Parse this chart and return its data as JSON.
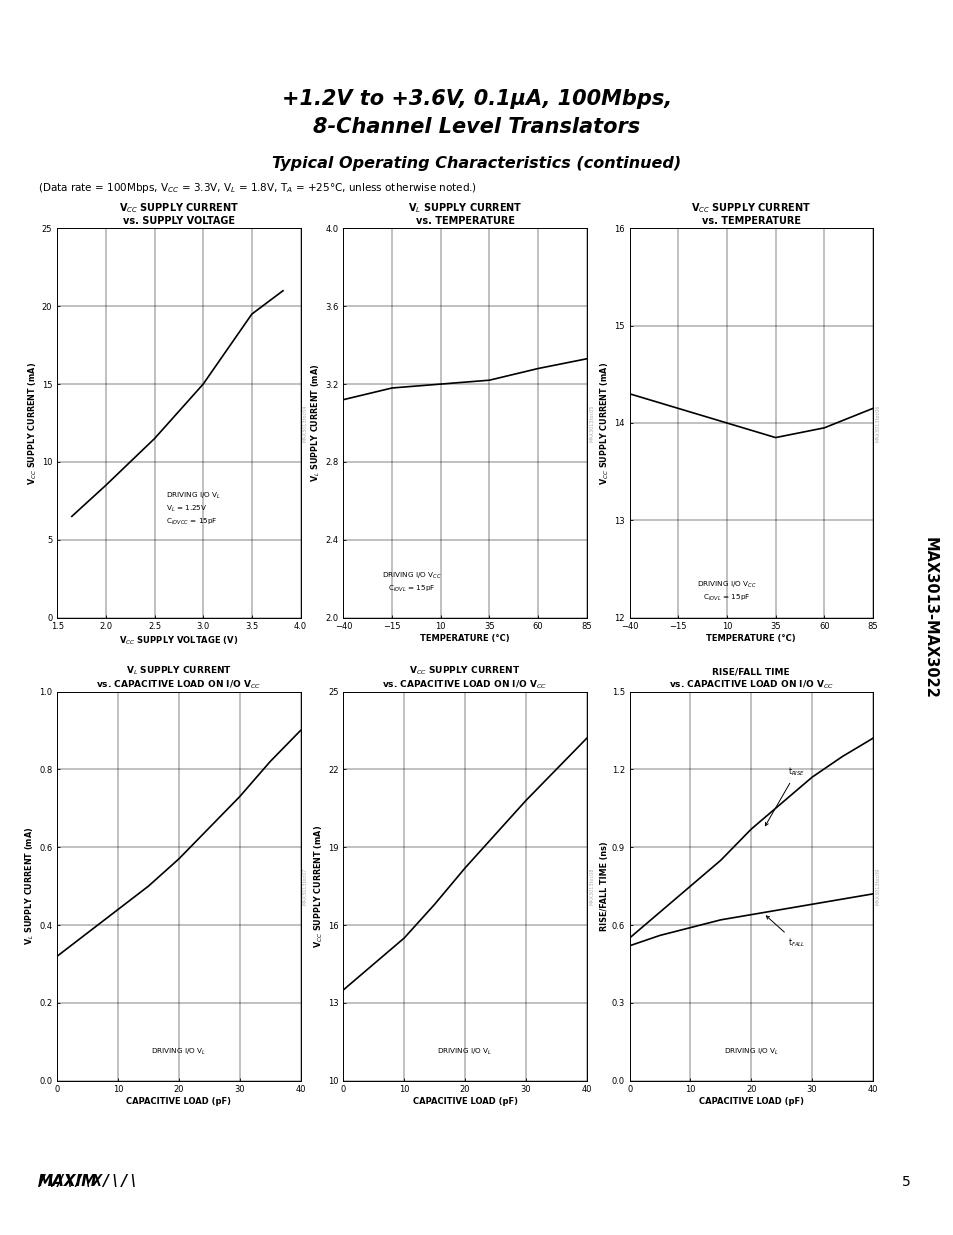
{
  "title_line1": "+1.2V to +3.6V, 0.1μA, 100Mbps,",
  "title_line2": "8-Channel Level Translators",
  "subtitle": "Typical Operating Characteristics (continued)",
  "sidebar_text": "MAX3013-MAX3022",
  "page_number": "5",
  "graph1": {
    "title1": "V$_{CC}$ SUPPLY CURRENT",
    "title2": "vs. SUPPLY VOLTAGE",
    "xlabel": "V$_{CC}$ SUPPLY VOLTAGE (V)",
    "ylabel": "V$_{CC}$ SUPPLY CURRENT (mA)",
    "xlim": [
      1.5,
      4.0
    ],
    "ylim": [
      0,
      25
    ],
    "xticks": [
      1.5,
      2.0,
      2.5,
      3.0,
      3.5,
      4.0
    ],
    "yticks": [
      0,
      5,
      10,
      15,
      20,
      25
    ],
    "x": [
      1.65,
      2.0,
      2.5,
      3.0,
      3.5,
      3.82
    ],
    "y": [
      6.5,
      8.5,
      11.5,
      15.0,
      19.5,
      21.0
    ],
    "ann_text": "DRIVING I/O V$_L$\nV$_L$ = 1.25V\nC$_{IOVCC}$ = 15pF",
    "ann_x": 2.62,
    "ann_y": 5.8,
    "watermark": "MAX3013toc04"
  },
  "graph2": {
    "title1": "V$_L$ SUPPLY CURRENT",
    "title2": "vs. TEMPERATURE",
    "xlabel": "TEMPERATURE (°C)",
    "ylabel": "V$_L$ SUPPLY CURRENT (mA)",
    "xlim": [
      -40,
      85
    ],
    "ylim": [
      2.0,
      4.0
    ],
    "xticks": [
      -40,
      -15,
      10,
      35,
      60,
      85
    ],
    "yticks": [
      2.0,
      2.4,
      2.8,
      3.2,
      3.6,
      4.0
    ],
    "x": [
      -40,
      -15,
      10,
      35,
      60,
      85
    ],
    "y": [
      3.12,
      3.18,
      3.2,
      3.22,
      3.28,
      3.33
    ],
    "ann_text": "DRIVING I/O V$_{CC}$\nC$_{IOVL}$ = 15pF",
    "ann_x": -5,
    "ann_y": 2.12,
    "watermark": "MAX3013toc05"
  },
  "graph3": {
    "title1": "V$_{CC}$ SUPPLY CURRENT",
    "title2": "vs. TEMPERATURE",
    "xlabel": "TEMPERATURE (°C)",
    "ylabel": "V$_{CC}$ SUPPLY CURRENT (mA)",
    "xlim": [
      -40,
      85
    ],
    "ylim": [
      12,
      16
    ],
    "xticks": [
      -40,
      -15,
      10,
      35,
      60,
      85
    ],
    "yticks": [
      12,
      13,
      14,
      15,
      16
    ],
    "x": [
      -40,
      -15,
      10,
      35,
      60,
      85
    ],
    "y": [
      14.3,
      14.15,
      14.0,
      13.85,
      13.95,
      14.15
    ],
    "ann_text": "DRIVING I/O V$_{CC}$\nC$_{IOVL}$ = 15pF",
    "ann_x": 10,
    "ann_y": 12.15,
    "watermark": "MAX3013toc06"
  },
  "graph4": {
    "title1": "V$_L$ SUPPLY CURRENT",
    "title2": "vs. CAPACITIVE LOAD ON I/O V$_{CC}$",
    "xlabel": "CAPACITIVE LOAD (pF)",
    "ylabel": "V$_L$ SUPPLY CURRENT (mA)",
    "xlim": [
      0,
      40
    ],
    "ylim": [
      0,
      1.0
    ],
    "xticks": [
      0,
      10,
      20,
      30,
      40
    ],
    "yticks": [
      0,
      0.2,
      0.4,
      0.6,
      0.8,
      1.0
    ],
    "x": [
      0,
      5,
      10,
      15,
      20,
      25,
      30,
      35,
      40
    ],
    "y": [
      0.32,
      0.38,
      0.44,
      0.5,
      0.57,
      0.65,
      0.73,
      0.82,
      0.9
    ],
    "ann_text": "DRIVING I/O V$_L$",
    "ann_x": 20,
    "ann_y": 0.06,
    "watermark": "MAX3013toc07"
  },
  "graph5": {
    "title1": "V$_{CC}$ SUPPLY CURRENT",
    "title2": "vs. CAPACITIVE LOAD ON I/O V$_{CC}$",
    "xlabel": "CAPACITIVE LOAD (pF)",
    "ylabel": "V$_{CC}$ SUPPLY CURRENT (mA)",
    "xlim": [
      0,
      40
    ],
    "ylim": [
      10,
      25
    ],
    "xticks": [
      0,
      10,
      20,
      30,
      40
    ],
    "yticks": [
      10,
      13,
      16,
      19,
      22,
      25
    ],
    "x": [
      0,
      5,
      10,
      15,
      20,
      25,
      30,
      35,
      40
    ],
    "y": [
      13.5,
      14.5,
      15.5,
      16.8,
      18.2,
      19.5,
      20.8,
      22.0,
      23.2
    ],
    "ann_text": "DRIVING I/O V$_L$",
    "ann_x": 20,
    "ann_y": 10.9,
    "watermark": "MAX3013toc08"
  },
  "graph6": {
    "title1": "RISE/FALL TIME",
    "title2": "vs. CAPACITIVE LOAD ON I/O V$_{CC}$",
    "xlabel": "CAPACITIVE LOAD (pF)",
    "ylabel": "RISE/FALL TIME (ns)",
    "xlim": [
      0,
      40
    ],
    "ylim": [
      0,
      1.5
    ],
    "xticks": [
      0,
      10,
      20,
      30,
      40
    ],
    "yticks": [
      0,
      0.3,
      0.6,
      0.9,
      1.2,
      1.5
    ],
    "x_rise": [
      0,
      5,
      10,
      15,
      20,
      25,
      30,
      35,
      40
    ],
    "y_rise": [
      0.55,
      0.65,
      0.75,
      0.85,
      0.97,
      1.07,
      1.17,
      1.25,
      1.32
    ],
    "x_fall": [
      0,
      5,
      10,
      15,
      20,
      25,
      30,
      35,
      40
    ],
    "y_fall": [
      0.52,
      0.56,
      0.59,
      0.62,
      0.64,
      0.66,
      0.68,
      0.7,
      0.72
    ],
    "ann_text": "DRIVING I/O V$_L$",
    "ann_x": 20,
    "ann_y": 0.09,
    "watermark": "MAX3013toc09"
  }
}
